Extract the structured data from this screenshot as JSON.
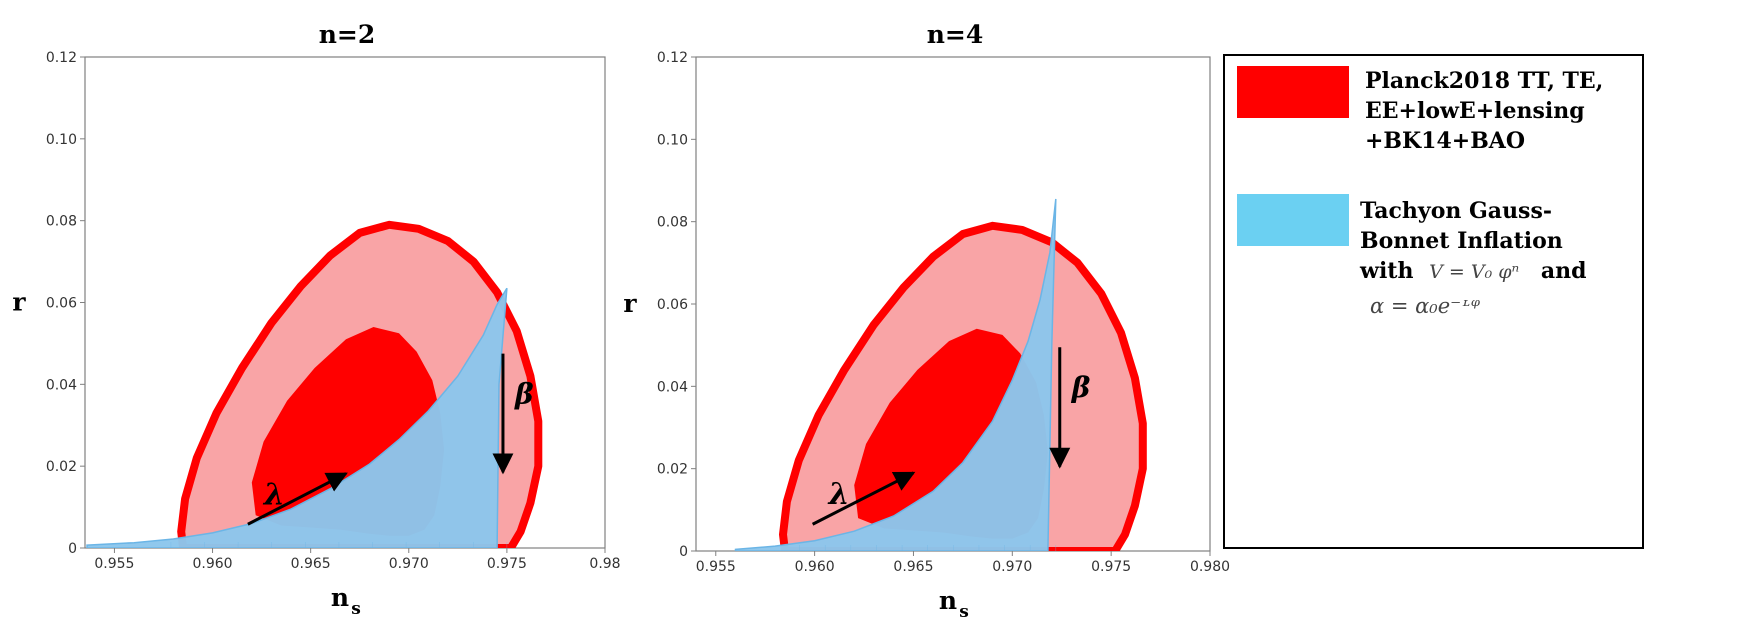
{
  "colors": {
    "outer_region": "#f9a4a6",
    "inner_region": "#ff0000",
    "model_fill": "#8cc6ec",
    "model_edge": "#6bb5e6",
    "contour_edge": "#ff0000",
    "axis": "#808080",
    "text": "#000000"
  },
  "legend": {
    "placement": "right",
    "entries": [
      {
        "color": "#ff0000",
        "lines": [
          "Planck2018 TT, TE,",
          "EE+lowE+lensing",
          "+BK14+BAO"
        ]
      },
      {
        "color": "#6bd0f2",
        "lines": [
          "Tachyon Gauss-",
          "Bonnet Inflation"
        ],
        "with_prefix": "with",
        "potential_formula": "V = V₀ φⁿ",
        "and_text": "and",
        "coupling_formula": "α = α₀e⁻ᶫᵠ"
      }
    ]
  },
  "chart_data": [
    {
      "type": "area",
      "title": "n=2",
      "xlabel": "n",
      "xlabel_sub": "s",
      "ylabel": "r",
      "xlim": [
        0.9535,
        0.98
      ],
      "ylim": [
        0,
        0.12
      ],
      "xticks": [
        "0.955",
        "0.960",
        "0.965",
        "0.970",
        "0.975",
        "0.98"
      ],
      "xtick_values": [
        0.955,
        0.96,
        0.965,
        0.97,
        0.975,
        0.98
      ],
      "yticks": [
        "0",
        "0.02",
        "0.04",
        "0.06",
        "0.08",
        "0.10",
        "0.12"
      ],
      "ytick_values": [
        0,
        0.02,
        0.04,
        0.06,
        0.08,
        0.1,
        0.12
      ],
      "grid": false,
      "outer_contour": [
        [
          0.9585,
          0.0
        ],
        [
          0.9584,
          0.004
        ],
        [
          0.9586,
          0.012
        ],
        [
          0.9592,
          0.022
        ],
        [
          0.9602,
          0.033
        ],
        [
          0.9615,
          0.044
        ],
        [
          0.963,
          0.055
        ],
        [
          0.9645,
          0.064
        ],
        [
          0.966,
          0.0715
        ],
        [
          0.9675,
          0.077
        ],
        [
          0.969,
          0.079
        ],
        [
          0.9705,
          0.078
        ],
        [
          0.972,
          0.075
        ],
        [
          0.9733,
          0.07
        ],
        [
          0.9745,
          0.0625
        ],
        [
          0.9755,
          0.053
        ],
        [
          0.9762,
          0.042
        ],
        [
          0.9766,
          0.031
        ],
        [
          0.9766,
          0.02
        ],
        [
          0.9762,
          0.011
        ],
        [
          0.9757,
          0.004
        ],
        [
          0.9752,
          0.0
        ]
      ],
      "inner_contour": [
        [
          0.9622,
          0.008
        ],
        [
          0.962,
          0.016
        ],
        [
          0.9626,
          0.026
        ],
        [
          0.9638,
          0.036
        ],
        [
          0.9652,
          0.044
        ],
        [
          0.9668,
          0.051
        ],
        [
          0.9682,
          0.054
        ],
        [
          0.9695,
          0.0525
        ],
        [
          0.9704,
          0.048
        ],
        [
          0.9712,
          0.041
        ],
        [
          0.9716,
          0.033
        ],
        [
          0.9718,
          0.024
        ],
        [
          0.9716,
          0.015
        ],
        [
          0.9713,
          0.008
        ],
        [
          0.9708,
          0.0045
        ],
        [
          0.97,
          0.003
        ],
        [
          0.969,
          0.003
        ],
        [
          0.968,
          0.0035
        ],
        [
          0.9665,
          0.0045
        ],
        [
          0.965,
          0.005
        ],
        [
          0.9635,
          0.0055
        ]
      ],
      "model_region": [
        [
          0.9536,
          0.0007
        ],
        [
          0.956,
          0.0013
        ],
        [
          0.958,
          0.0022
        ],
        [
          0.96,
          0.0037
        ],
        [
          0.962,
          0.006
        ],
        [
          0.964,
          0.0095
        ],
        [
          0.966,
          0.0145
        ],
        [
          0.968,
          0.0205
        ],
        [
          0.9695,
          0.0265
        ],
        [
          0.971,
          0.0335
        ],
        [
          0.9725,
          0.042
        ],
        [
          0.9738,
          0.052
        ],
        [
          0.9745,
          0.0595
        ],
        [
          0.975,
          0.0635
        ],
        [
          0.9746,
          0.04
        ],
        [
          0.9745,
          0.0
        ],
        [
          0.9536,
          0.0
        ]
      ],
      "lambda_arrow": {
        "label": "λ",
        "from": [
          0.9618,
          0.0058
        ],
        "to": [
          0.9668,
          0.0182
        ]
      },
      "beta_arrow": {
        "label": "β",
        "from": [
          0.9748,
          0.0475
        ],
        "to": [
          0.9748,
          0.0185
        ]
      }
    },
    {
      "type": "area",
      "title": "n=4",
      "xlabel": "n",
      "xlabel_sub": "s",
      "ylabel": "r",
      "xlim": [
        0.954,
        0.98
      ],
      "ylim": [
        0,
        0.12
      ],
      "xticks": [
        "0.955",
        "0.960",
        "0.965",
        "0.970",
        "0.975",
        "0.980"
      ],
      "xtick_values": [
        0.955,
        0.96,
        0.965,
        0.97,
        0.975,
        0.98
      ],
      "yticks": [
        "0",
        "0.02",
        "0.04",
        "0.06",
        "0.08",
        "0.10",
        "0.12"
      ],
      "ytick_values": [
        0,
        0.02,
        0.04,
        0.06,
        0.08,
        0.1,
        0.12
      ],
      "grid": false,
      "outer_contour": [
        [
          0.9585,
          0.0
        ],
        [
          0.9584,
          0.004
        ],
        [
          0.9586,
          0.012
        ],
        [
          0.9592,
          0.022
        ],
        [
          0.9602,
          0.033
        ],
        [
          0.9615,
          0.044
        ],
        [
          0.963,
          0.055
        ],
        [
          0.9645,
          0.064
        ],
        [
          0.966,
          0.0715
        ],
        [
          0.9675,
          0.077
        ],
        [
          0.969,
          0.079
        ],
        [
          0.9705,
          0.078
        ],
        [
          0.972,
          0.075
        ],
        [
          0.9733,
          0.07
        ],
        [
          0.9745,
          0.0625
        ],
        [
          0.9755,
          0.053
        ],
        [
          0.9762,
          0.042
        ],
        [
          0.9766,
          0.031
        ],
        [
          0.9766,
          0.02
        ],
        [
          0.9762,
          0.011
        ],
        [
          0.9757,
          0.004
        ],
        [
          0.9752,
          0.0
        ]
      ],
      "inner_contour": [
        [
          0.9622,
          0.008
        ],
        [
          0.962,
          0.016
        ],
        [
          0.9626,
          0.026
        ],
        [
          0.9638,
          0.036
        ],
        [
          0.9652,
          0.044
        ],
        [
          0.9668,
          0.051
        ],
        [
          0.9682,
          0.054
        ],
        [
          0.9695,
          0.0525
        ],
        [
          0.9704,
          0.048
        ],
        [
          0.9712,
          0.041
        ],
        [
          0.9716,
          0.033
        ],
        [
          0.9718,
          0.024
        ],
        [
          0.9716,
          0.015
        ],
        [
          0.9713,
          0.008
        ],
        [
          0.9708,
          0.0045
        ],
        [
          0.97,
          0.003
        ],
        [
          0.969,
          0.003
        ],
        [
          0.968,
          0.0035
        ],
        [
          0.9665,
          0.0045
        ],
        [
          0.965,
          0.005
        ],
        [
          0.9635,
          0.0055
        ]
      ],
      "model_region": [
        [
          0.956,
          0.0004
        ],
        [
          0.958,
          0.0012
        ],
        [
          0.96,
          0.0025
        ],
        [
          0.962,
          0.0048
        ],
        [
          0.964,
          0.0085
        ],
        [
          0.966,
          0.0145
        ],
        [
          0.9675,
          0.0215
        ],
        [
          0.969,
          0.0315
        ],
        [
          0.97,
          0.0415
        ],
        [
          0.9708,
          0.051
        ],
        [
          0.9714,
          0.061
        ],
        [
          0.9719,
          0.0725
        ],
        [
          0.9722,
          0.0855
        ],
        [
          0.972,
          0.05
        ],
        [
          0.9718,
          0.0
        ],
        [
          0.956,
          0.0
        ]
      ],
      "lambda_arrow": {
        "label": "λ",
        "from": [
          0.9599,
          0.0065
        ],
        "to": [
          0.965,
          0.019
        ]
      },
      "beta_arrow": {
        "label": "β",
        "from": [
          0.9724,
          0.0495
        ],
        "to": [
          0.9724,
          0.0205
        ]
      }
    }
  ]
}
